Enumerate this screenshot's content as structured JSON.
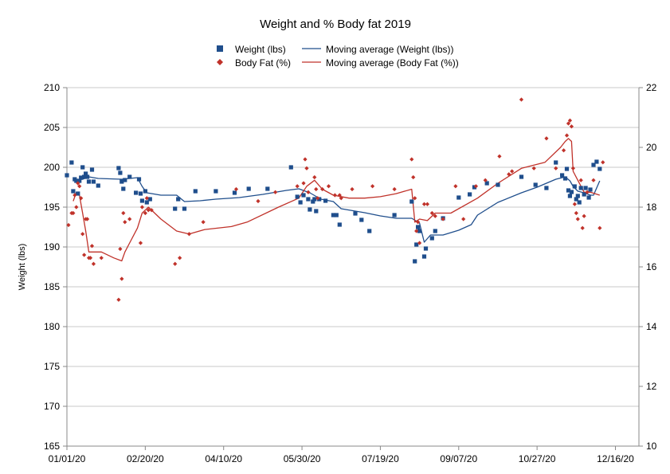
{
  "chart_data": {
    "type": "scatter",
    "title": "Weight and % Body fat 2019",
    "ylabel": "Weight (lbs)",
    "y2label": "",
    "x_ticks": [
      "01/01/20",
      "02/20/20",
      "04/10/20",
      "05/30/20",
      "07/19/20",
      "09/07/20",
      "10/27/20",
      "12/16/20"
    ],
    "x_unit": "days since 01/01/20",
    "xlim": [
      0,
      365
    ],
    "ylim": [
      165,
      210
    ],
    "y_ticks": [
      "165",
      "170",
      "175",
      "180",
      "185",
      "190",
      "195",
      "200",
      "205",
      "210"
    ],
    "y2lim": [
      10,
      22
    ],
    "y2_ticks": [
      "10",
      "12",
      "14",
      "16",
      "18",
      "20",
      "22"
    ],
    "grid": true,
    "legend": "top-center",
    "colors": {
      "weight": "#1f4e8c",
      "fat": "#c0322a",
      "grid": "#c8c8c8",
      "axis": "#888888"
    },
    "series": [
      {
        "name": "Weight (lbs)",
        "kind": "points",
        "axis": "left",
        "marker": "square",
        "color": "#1f4e8c",
        "points": [
          [
            0,
            199
          ],
          [
            3,
            200.6
          ],
          [
            4,
            197
          ],
          [
            5,
            198.5
          ],
          [
            6,
            198.3
          ],
          [
            7,
            196.7
          ],
          [
            8,
            198.3
          ],
          [
            9,
            198.7
          ],
          [
            10,
            200
          ],
          [
            11,
            198.8
          ],
          [
            12,
            199.2
          ],
          [
            13,
            198.8
          ],
          [
            14,
            198.2
          ],
          [
            16,
            199.7
          ],
          [
            17,
            198.2
          ],
          [
            20,
            197.7
          ],
          [
            33,
            199.9
          ],
          [
            34,
            199.3
          ],
          [
            35,
            198.2
          ],
          [
            36,
            197.3
          ],
          [
            37,
            198.4
          ],
          [
            40,
            198.8
          ],
          [
            44,
            196.8
          ],
          [
            46,
            198.5
          ],
          [
            47,
            196.7
          ],
          [
            48,
            195.8
          ],
          [
            50,
            197
          ],
          [
            51,
            195.6
          ],
          [
            53,
            196
          ],
          [
            69,
            194.8
          ],
          [
            71,
            196
          ],
          [
            75,
            194.8
          ],
          [
            82,
            197
          ],
          [
            95,
            197
          ],
          [
            107,
            196.8
          ],
          [
            116,
            197.3
          ],
          [
            128,
            197.3
          ],
          [
            143,
            200
          ],
          [
            147,
            196.3
          ],
          [
            149,
            195.6
          ],
          [
            151,
            196.5
          ],
          [
            154,
            196
          ],
          [
            155,
            194.7
          ],
          [
            157,
            195.7
          ],
          [
            158,
            196
          ],
          [
            159,
            194.5
          ],
          [
            161,
            196
          ],
          [
            165,
            195.8
          ],
          [
            170,
            194
          ],
          [
            172,
            194
          ],
          [
            174,
            192.8
          ],
          [
            184,
            194.2
          ],
          [
            188,
            193.4
          ],
          [
            193,
            192
          ],
          [
            209,
            194
          ],
          [
            220,
            195.7
          ],
          [
            222,
            188.2
          ],
          [
            223,
            190.3
          ],
          [
            224,
            192.5
          ],
          [
            225,
            192
          ],
          [
            228,
            188.8
          ],
          [
            229,
            189.8
          ],
          [
            233,
            191.1
          ],
          [
            235,
            192
          ],
          [
            240,
            193.6
          ],
          [
            250,
            196.2
          ],
          [
            257,
            196.6
          ],
          [
            260,
            197.5
          ],
          [
            268,
            198
          ],
          [
            275,
            197.8
          ],
          [
            290,
            198.8
          ],
          [
            299,
            197.8
          ],
          [
            306,
            197.4
          ],
          [
            312,
            200.6
          ],
          [
            316,
            199
          ],
          [
            318,
            198.6
          ],
          [
            319,
            199.8
          ],
          [
            320,
            197.1
          ],
          [
            321,
            196.4
          ],
          [
            322,
            196.9
          ],
          [
            324,
            197.6
          ],
          [
            325,
            196
          ],
          [
            326,
            196.4
          ],
          [
            327,
            195.6
          ],
          [
            328,
            197.4
          ],
          [
            330,
            196.6
          ],
          [
            331,
            197.4
          ],
          [
            333,
            196.2
          ],
          [
            334,
            197.2
          ],
          [
            336,
            200.3
          ],
          [
            338,
            200.7
          ],
          [
            340,
            199.8
          ]
        ]
      },
      {
        "name": "Body Fat (%)",
        "kind": "points",
        "axis": "right",
        "marker": "diamond",
        "color": "#c0322a",
        "points": [
          [
            1,
            17.4
          ],
          [
            3,
            17.8
          ],
          [
            4,
            17.8
          ],
          [
            5,
            18.4
          ],
          [
            6,
            18
          ],
          [
            7,
            18.8
          ],
          [
            8,
            18.7
          ],
          [
            9,
            18.3
          ],
          [
            10,
            17.1
          ],
          [
            11,
            16.4
          ],
          [
            12,
            17.6
          ],
          [
            13,
            17.6
          ],
          [
            14,
            16.3
          ],
          [
            15,
            16.3
          ],
          [
            16,
            16.7
          ],
          [
            17,
            16.1
          ],
          [
            22,
            16.3
          ],
          [
            33,
            14.9
          ],
          [
            34,
            16.6
          ],
          [
            35,
            15.6
          ],
          [
            36,
            17.8
          ],
          [
            37,
            17.5
          ],
          [
            40,
            17.6
          ],
          [
            47,
            16.8
          ],
          [
            48,
            18
          ],
          [
            50,
            17.8
          ],
          [
            51,
            18.3
          ],
          [
            52,
            17.9
          ],
          [
            54,
            17.9
          ],
          [
            69,
            16.1
          ],
          [
            72,
            16.3
          ],
          [
            78,
            17.1
          ],
          [
            87,
            17.5
          ],
          [
            108,
            18.6
          ],
          [
            122,
            18.2
          ],
          [
            133,
            18.5
          ],
          [
            147,
            18.7
          ],
          [
            151,
            18.8
          ],
          [
            152,
            19.6
          ],
          [
            153,
            19.3
          ],
          [
            154,
            18.5
          ],
          [
            158,
            19
          ],
          [
            159,
            18.6
          ],
          [
            160,
            18.3
          ],
          [
            163,
            18.6
          ],
          [
            167,
            18.7
          ],
          [
            171,
            18.4
          ],
          [
            174,
            18.4
          ],
          [
            175,
            18.3
          ],
          [
            182,
            18.6
          ],
          [
            195,
            18.7
          ],
          [
            209,
            18.6
          ],
          [
            220,
            19.6
          ],
          [
            221,
            19
          ],
          [
            222,
            18.3
          ],
          [
            223,
            17.2
          ],
          [
            224,
            17.5
          ],
          [
            225,
            16.8
          ],
          [
            228,
            18.1
          ],
          [
            230,
            18.1
          ],
          [
            233,
            17.8
          ],
          [
            235,
            17.7
          ],
          [
            240,
            17.6
          ],
          [
            248,
            18.7
          ],
          [
            253,
            17.6
          ],
          [
            261,
            18.7
          ],
          [
            267,
            18.9
          ],
          [
            276,
            19.7
          ],
          [
            282,
            19.1
          ],
          [
            284,
            19.2
          ],
          [
            290,
            21.6
          ],
          [
            298,
            19.3
          ],
          [
            306,
            20.3
          ],
          [
            312,
            19.3
          ],
          [
            317,
            19.9
          ],
          [
            319,
            20.4
          ],
          [
            320,
            20.8
          ],
          [
            321,
            20.9
          ],
          [
            322,
            20.7
          ],
          [
            323,
            19.3
          ],
          [
            324,
            18.1
          ],
          [
            325,
            17.8
          ],
          [
            326,
            17.6
          ],
          [
            328,
            18.9
          ],
          [
            329,
            17.3
          ],
          [
            330,
            17.7
          ],
          [
            332,
            18.5
          ],
          [
            336,
            18.9
          ],
          [
            340,
            17.3
          ],
          [
            342,
            19.5
          ]
        ]
      },
      {
        "name": "Moving average (Weight (lbs))",
        "kind": "line",
        "axis": "left",
        "color": "#1f4e8c",
        "points": [
          [
            6,
            198.4
          ],
          [
            10,
            198.5
          ],
          [
            14,
            198.8
          ],
          [
            20,
            198.6
          ],
          [
            35,
            198.5
          ],
          [
            45,
            198.7
          ],
          [
            48,
            197.6
          ],
          [
            51,
            196.8
          ],
          [
            60,
            196.5
          ],
          [
            70,
            196.5
          ],
          [
            75,
            195.7
          ],
          [
            85,
            195.8
          ],
          [
            95,
            196
          ],
          [
            110,
            196.2
          ],
          [
            125,
            196.6
          ],
          [
            140,
            197.1
          ],
          [
            148,
            197.3
          ],
          [
            155,
            196.8
          ],
          [
            162,
            196
          ],
          [
            170,
            195.7
          ],
          [
            175,
            194.8
          ],
          [
            190,
            194.3
          ],
          [
            200,
            193.9
          ],
          [
            210,
            193.6
          ],
          [
            220,
            193.6
          ],
          [
            225,
            193
          ],
          [
            228,
            190.6
          ],
          [
            232,
            191.5
          ],
          [
            240,
            191.5
          ],
          [
            250,
            192.1
          ],
          [
            258,
            192.8
          ],
          [
            262,
            194
          ],
          [
            275,
            195.6
          ],
          [
            290,
            196.8
          ],
          [
            300,
            197.5
          ],
          [
            312,
            198.5
          ],
          [
            318,
            198.8
          ],
          [
            321,
            198.3
          ],
          [
            323,
            197.6
          ],
          [
            326,
            197
          ],
          [
            330,
            196.8
          ],
          [
            334,
            196.5
          ],
          [
            336,
            196.5
          ],
          [
            340,
            198.3
          ]
        ]
      },
      {
        "name": "Moving average (Body Fat (%))",
        "kind": "line",
        "axis": "right",
        "color": "#c0322a",
        "points": [
          [
            4,
            18.2
          ],
          [
            6,
            18.5
          ],
          [
            8,
            18.4
          ],
          [
            10,
            17.8
          ],
          [
            12,
            17.2
          ],
          [
            14,
            16.5
          ],
          [
            17,
            16.5
          ],
          [
            22,
            16.5
          ],
          [
            30,
            16.3
          ],
          [
            35,
            16.2
          ],
          [
            37,
            16.5
          ],
          [
            40,
            16.8
          ],
          [
            45,
            17.3
          ],
          [
            48,
            17.8
          ],
          [
            52,
            18
          ],
          [
            60,
            17.6
          ],
          [
            70,
            17.2
          ],
          [
            78,
            17.1
          ],
          [
            88,
            17.25
          ],
          [
            105,
            17.35
          ],
          [
            115,
            17.5
          ],
          [
            135,
            18
          ],
          [
            148,
            18.3
          ],
          [
            153,
            18.7
          ],
          [
            158,
            18.9
          ],
          [
            163,
            18.6
          ],
          [
            170,
            18.4
          ],
          [
            180,
            18.3
          ],
          [
            190,
            18.3
          ],
          [
            200,
            18.35
          ],
          [
            210,
            18.45
          ],
          [
            220,
            18.6
          ],
          [
            222,
            17.5
          ],
          [
            225,
            17.6
          ],
          [
            230,
            17.55
          ],
          [
            235,
            17.8
          ],
          [
            245,
            17.8
          ],
          [
            262,
            18.3
          ],
          [
            275,
            18.8
          ],
          [
            290,
            19.3
          ],
          [
            305,
            19.5
          ],
          [
            315,
            20.0
          ],
          [
            318,
            20.2
          ],
          [
            320,
            20.3
          ],
          [
            322,
            20.2
          ],
          [
            323,
            19.2
          ],
          [
            326,
            18.9
          ],
          [
            330,
            18.5
          ],
          [
            334,
            18.5
          ],
          [
            340,
            18.4
          ]
        ]
      }
    ]
  }
}
